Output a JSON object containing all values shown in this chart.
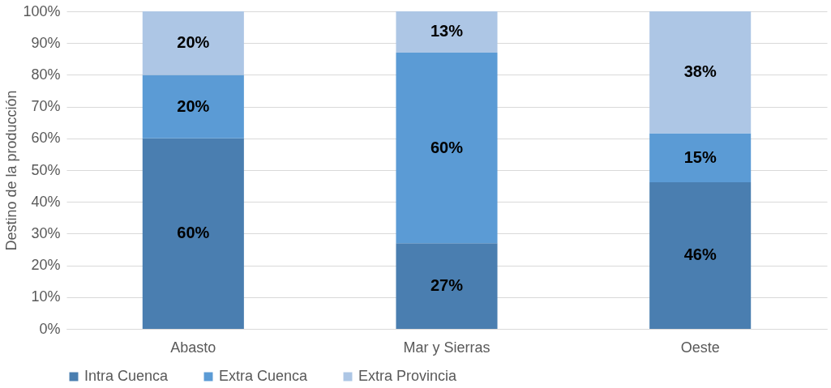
{
  "chart_data": {
    "type": "bar",
    "stacked": true,
    "ylabel": "Destino de la producción",
    "categories": [
      "Abasto",
      "Mar y Sierras",
      "Oeste"
    ],
    "series": [
      {
        "name": "Intra Cuenca",
        "color": "#4a7eb0",
        "values": [
          60,
          27,
          46.2
        ],
        "value_labels": [
          "60%",
          "27%",
          "46%"
        ]
      },
      {
        "name": "Extra Cuenca",
        "color": "#5b9bd5",
        "values": [
          20,
          60,
          15.4
        ],
        "value_labels": [
          "20%",
          "60%",
          "15%"
        ]
      },
      {
        "name": "Extra Provincia",
        "color": "#adc6e5",
        "values": [
          20,
          13,
          38.4
        ],
        "value_labels": [
          "20%",
          "13%",
          "38%"
        ]
      }
    ],
    "ylim": [
      0,
      100
    ],
    "yticks": [
      {
        "value": 0,
        "label": "0%"
      },
      {
        "value": 10,
        "label": "10%"
      },
      {
        "value": 20,
        "label": "20%"
      },
      {
        "value": 30,
        "label": "30%"
      },
      {
        "value": 40,
        "label": "40%"
      },
      {
        "value": 50,
        "label": "50%"
      },
      {
        "value": 60,
        "label": "60%"
      },
      {
        "value": 70,
        "label": "70%"
      },
      {
        "value": 80,
        "label": "80%"
      },
      {
        "value": 90,
        "label": "90%"
      },
      {
        "value": 100,
        "label": "100%"
      }
    ],
    "grid": "y",
    "legend": "bottom"
  }
}
